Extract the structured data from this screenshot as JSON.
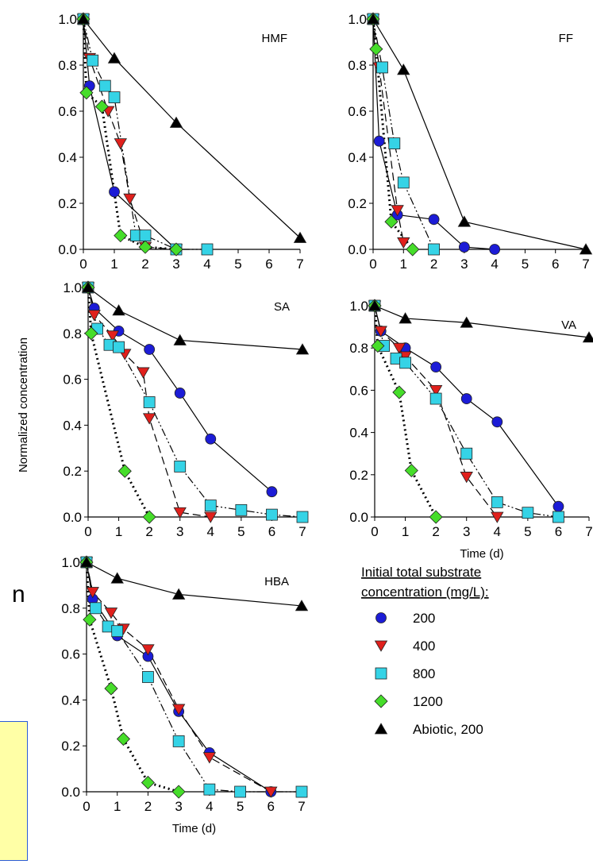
{
  "chart_data": {
    "type": "scatter",
    "ylabel": "Normalized concentration",
    "xlim": [
      0,
      7
    ],
    "ylim": [
      0,
      1
    ],
    "xticks": [
      "0",
      "1",
      "2",
      "3",
      "4",
      "5",
      "6",
      "7"
    ],
    "yticks": [
      "0.0",
      "0.2",
      "0.4",
      "0.6",
      "0.8",
      "1.0"
    ],
    "legend": {
      "title_line1": "Initial total substrate",
      "title_line2": "concentration (mg/L):",
      "placement": "bottom-right",
      "entries": [
        {
          "label": "200",
          "marker": "circle",
          "color": "#1c1cd6"
        },
        {
          "label": "400",
          "marker": "triangle-down",
          "color": "#e0201c"
        },
        {
          "label": "800",
          "marker": "square",
          "color": "#35d3e6"
        },
        {
          "label": "1200",
          "marker": "diamond",
          "color": "#46dd2a"
        },
        {
          "label": "Abiotic, 200",
          "marker": "triangle-up",
          "color": "#000000"
        }
      ]
    },
    "panels": [
      {
        "name": "HMF",
        "xlabel": "",
        "series": [
          {
            "key": "200",
            "x": [
              0,
              0.2,
              1,
              3
            ],
            "y": [
              1,
              0.71,
              0.25,
              0
            ]
          },
          {
            "key": "400",
            "x": [
              0,
              0.2,
              0.8,
              1.2,
              1.5,
              2,
              3
            ],
            "y": [
              1,
              0.83,
              0.6,
              0.46,
              0.22,
              0.01,
              0
            ]
          },
          {
            "key": "800",
            "x": [
              0,
              0.3,
              0.7,
              1,
              1.7,
              2,
              3,
              4
            ],
            "y": [
              1,
              0.82,
              0.71,
              0.66,
              0.06,
              0.06,
              0,
              0
            ]
          },
          {
            "key": "1200",
            "x": [
              0,
              0.1,
              0.6,
              1.2,
              2,
              3
            ],
            "y": [
              1,
              0.68,
              0.62,
              0.06,
              0.01,
              0
            ]
          },
          {
            "key": "Abiotic, 200",
            "x": [
              0,
              1,
              3,
              7
            ],
            "y": [
              1,
              0.83,
              0.55,
              0.05
            ]
          }
        ]
      },
      {
        "name": "FF",
        "xlabel": "",
        "series": [
          {
            "key": "200",
            "x": [
              0,
              0.2,
              0.8,
              2,
              3,
              4
            ],
            "y": [
              1,
              0.47,
              0.15,
              0.13,
              0.01,
              0
            ]
          },
          {
            "key": "400",
            "x": [
              0,
              0.2,
              0.8,
              1
            ],
            "y": [
              1,
              0.79,
              0.17,
              0.03
            ]
          },
          {
            "key": "800",
            "x": [
              0,
              0.3,
              0.7,
              1,
              2
            ],
            "y": [
              1,
              0.79,
              0.46,
              0.29,
              0
            ]
          },
          {
            "key": "1200",
            "x": [
              0,
              0.1,
              0.6,
              1.3
            ],
            "y": [
              1,
              0.87,
              0.12,
              0
            ]
          },
          {
            "key": "Abiotic, 200",
            "x": [
              0,
              1,
              3,
              7
            ],
            "y": [
              1,
              0.78,
              0.12,
              0
            ]
          }
        ]
      },
      {
        "name": "SA",
        "xlabel": "",
        "series": [
          {
            "key": "200",
            "x": [
              0,
              0.2,
              1,
              2,
              3,
              4,
              6
            ],
            "y": [
              1,
              0.91,
              0.81,
              0.73,
              0.54,
              0.34,
              0.11
            ]
          },
          {
            "key": "400",
            "x": [
              0,
              0.2,
              0.8,
              1.2,
              1.8,
              2,
              3,
              4
            ],
            "y": [
              1,
              0.88,
              0.79,
              0.71,
              0.63,
              0.43,
              0.02,
              0
            ]
          },
          {
            "key": "800",
            "x": [
              0,
              0.3,
              0.7,
              1,
              2,
              3,
              4,
              5,
              6,
              7
            ],
            "y": [
              1,
              0.82,
              0.75,
              0.74,
              0.5,
              0.22,
              0.05,
              0.03,
              0.01,
              0
            ]
          },
          {
            "key": "1200",
            "x": [
              0,
              0.1,
              1.2,
              2
            ],
            "y": [
              1,
              0.8,
              0.2,
              0
            ]
          },
          {
            "key": "Abiotic, 200",
            "x": [
              0,
              1,
              3,
              7
            ],
            "y": [
              1,
              0.9,
              0.77,
              0.73
            ]
          }
        ]
      },
      {
        "name": "VA",
        "xlabel": "Time (d)",
        "series": [
          {
            "key": "200",
            "x": [
              0,
              0.2,
              1,
              2,
              3,
              4,
              6
            ],
            "y": [
              1,
              0.88,
              0.8,
              0.71,
              0.56,
              0.45,
              0.05
            ]
          },
          {
            "key": "400",
            "x": [
              0,
              0.2,
              0.8,
              1,
              2,
              3,
              4
            ],
            "y": [
              1,
              0.88,
              0.8,
              0.76,
              0.6,
              0.19,
              0
            ]
          },
          {
            "key": "800",
            "x": [
              0,
              0.3,
              0.7,
              1,
              2,
              3,
              4,
              5,
              6
            ],
            "y": [
              1,
              0.81,
              0.75,
              0.73,
              0.56,
              0.3,
              0.07,
              0.02,
              0
            ]
          },
          {
            "key": "1200",
            "x": [
              0,
              0.1,
              0.8,
              1.2,
              2
            ],
            "y": [
              1,
              0.81,
              0.59,
              0.22,
              0
            ]
          },
          {
            "key": "Abiotic, 200",
            "x": [
              0,
              1,
              3,
              7
            ],
            "y": [
              1,
              0.94,
              0.92,
              0.85
            ]
          }
        ]
      },
      {
        "name": "HBA",
        "xlabel": "Time (d)",
        "series": [
          {
            "key": "200",
            "x": [
              0,
              0.2,
              1,
              2,
              3,
              4,
              6
            ],
            "y": [
              1,
              0.84,
              0.68,
              0.59,
              0.35,
              0.17,
              0
            ]
          },
          {
            "key": "400",
            "x": [
              0,
              0.2,
              0.8,
              1.2,
              2,
              3,
              4,
              6
            ],
            "y": [
              1,
              0.87,
              0.78,
              0.71,
              0.62,
              0.36,
              0.15,
              0
            ]
          },
          {
            "key": "800",
            "x": [
              0,
              0.3,
              0.7,
              1,
              2,
              3,
              4,
              5,
              7
            ],
            "y": [
              1,
              0.8,
              0.72,
              0.7,
              0.5,
              0.22,
              0.01,
              0,
              0
            ]
          },
          {
            "key": "1200",
            "x": [
              0,
              0.1,
              0.8,
              1.2,
              2,
              3
            ],
            "y": [
              1,
              0.75,
              0.45,
              0.23,
              0.04,
              0
            ]
          },
          {
            "key": "Abiotic, 200",
            "x": [
              0,
              1,
              3,
              7
            ],
            "y": [
              1,
              0.93,
              0.86,
              0.81
            ]
          }
        ]
      }
    ]
  },
  "fragment_text": "n"
}
